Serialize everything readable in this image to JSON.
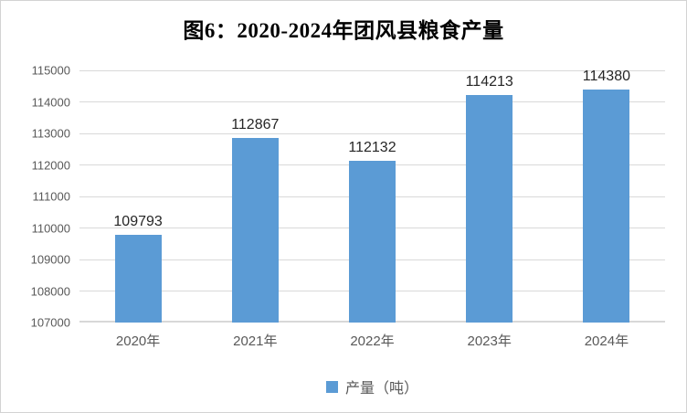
{
  "chart_data": {
    "type": "bar",
    "title": "图6：2020-2024年团风县粮食产量",
    "categories": [
      "2020年",
      "2021年",
      "2022年",
      "2023年",
      "2024年"
    ],
    "series": [
      {
        "name": "产量（吨）",
        "values": [
          109793,
          112867,
          112132,
          114213,
          114380
        ]
      }
    ],
    "xlabel": "",
    "ylabel": "",
    "ylim": [
      107000,
      115000
    ],
    "yticks": [
      107000,
      108000,
      109000,
      110000,
      111000,
      112000,
      113000,
      114000,
      115000
    ],
    "grid": true,
    "data_labels_shown": true,
    "legend_position": "bottom",
    "colors": {
      "bar": "#5B9BD5",
      "gridline": "#D9D9D9",
      "axis_line": "#D8D8D8",
      "axis_text": "#595959",
      "data_label_text": "#262626",
      "title_text": "#000000",
      "frame_border": "#D3D3D3"
    }
  }
}
